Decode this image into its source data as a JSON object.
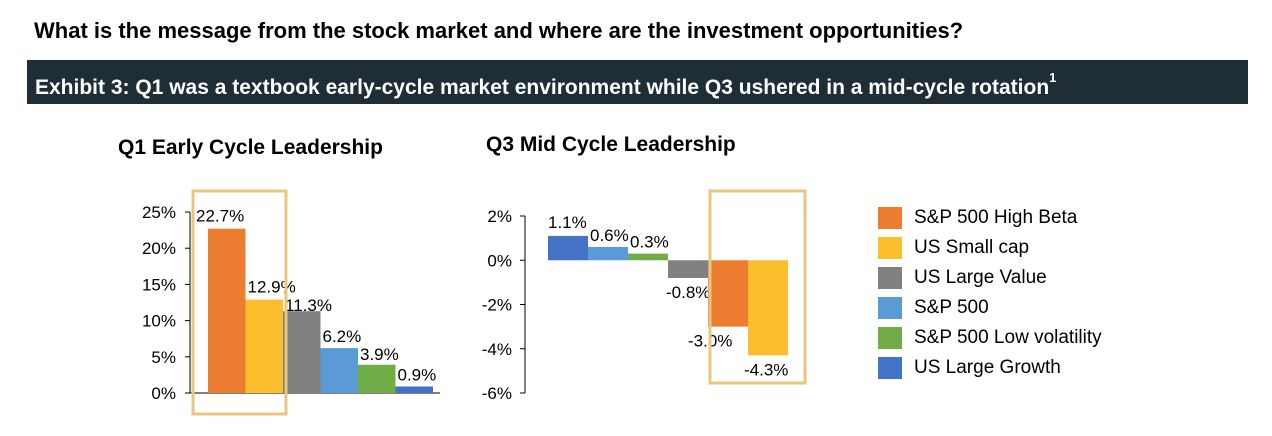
{
  "headline": "What is the message from the stock market and where are the investment opportunities?",
  "banner": {
    "text": "Exhibit 3: Q1 was a textbook early-cycle market environment while Q3 ushered in a mid-cycle rotation",
    "footnote": "1"
  },
  "highlight_color": "#e8c680",
  "legend": [
    {
      "name": "S&P 500 High Beta",
      "color": "#ed7d31"
    },
    {
      "name": "US Small cap",
      "color": "#fbbf2d"
    },
    {
      "name": "US Large Value",
      "color": "#808080"
    },
    {
      "name": "S&P 500",
      "color": "#5b9bd5"
    },
    {
      "name": "S&P 500 Low volatility",
      "color": "#70ad47"
    },
    {
      "name": "US Large Growth",
      "color": "#4472c4"
    }
  ],
  "chart_data": [
    {
      "type": "bar",
      "title": "Q1 Early Cycle Leadership",
      "categories": [
        "S&P 500 High Beta",
        "US Small cap",
        "US Large Value",
        "S&P 500",
        "S&P 500 Low volatility",
        "US Large Growth"
      ],
      "values": [
        22.7,
        12.9,
        11.3,
        6.2,
        3.9,
        0.9
      ],
      "data_labels": [
        "22.7%",
        "12.9%",
        "11.3%",
        "6.2%",
        "3.9%",
        "0.9%"
      ],
      "yticks": [
        0,
        5,
        10,
        15,
        20,
        25
      ],
      "ytick_labels": [
        "0%",
        "5%",
        "10%",
        "15%",
        "20%",
        "25%"
      ],
      "ylim": [
        0,
        25
      ],
      "highlighted": [
        "S&P 500 High Beta",
        "US Small cap"
      ]
    },
    {
      "type": "bar",
      "title": "Q3 Mid Cycle Leadership",
      "categories": [
        "US Large Growth",
        "S&P 500",
        "S&P 500 Low volatility",
        "US Large Value",
        "S&P 500 High Beta",
        "US Small cap"
      ],
      "values": [
        1.1,
        0.6,
        0.3,
        -0.8,
        -3.0,
        -4.3
      ],
      "data_labels": [
        "1.1%",
        "0.6%",
        "0.3%",
        "-0.8%",
        "-3.0%",
        "-4.3%"
      ],
      "yticks": [
        2,
        0,
        -2,
        -4,
        -6
      ],
      "ytick_labels": [
        "2%",
        "0%",
        "-2%",
        "-4%",
        "-6%"
      ],
      "ylim": [
        -6,
        2
      ],
      "highlighted": [
        "S&P 500 High Beta",
        "US Small cap"
      ]
    }
  ]
}
